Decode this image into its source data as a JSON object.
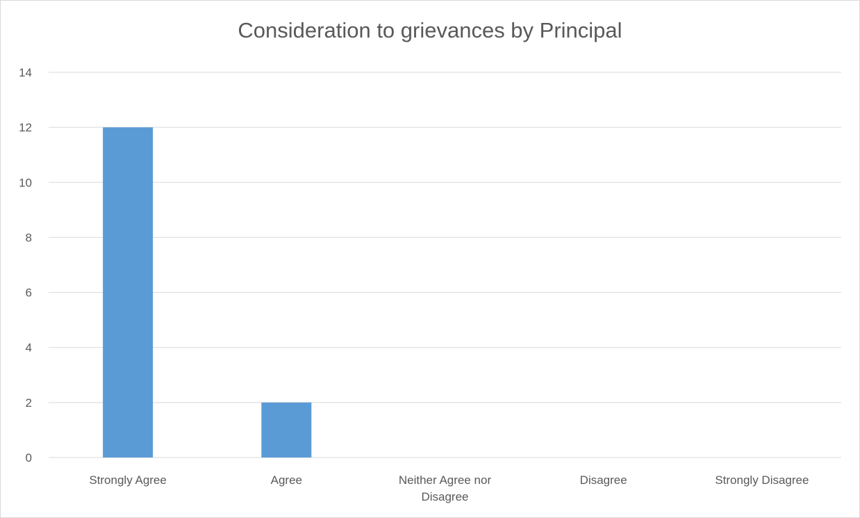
{
  "chart_data": {
    "type": "bar",
    "title": "Consideration to grievances by Principal",
    "categories": [
      "Strongly Agree",
      "Agree",
      "Neither Agree nor Disagree",
      "Disagree",
      "Strongly Disagree"
    ],
    "category_lines": [
      [
        "Strongly Agree"
      ],
      [
        "Agree"
      ],
      [
        "Neither Agree nor",
        "Disagree"
      ],
      [
        "Disagree"
      ],
      [
        "Strongly Disagree"
      ]
    ],
    "values": [
      12,
      2,
      0,
      0,
      0
    ],
    "ylim": [
      0,
      14
    ],
    "yticks": [
      0,
      2,
      4,
      6,
      8,
      10,
      12,
      14
    ],
    "xlabel": "",
    "ylabel": "",
    "grid": true,
    "legend": "none",
    "bar_color": "#5b9bd5",
    "grid_color": "#d9d9d9",
    "text_color": "#595959"
  }
}
